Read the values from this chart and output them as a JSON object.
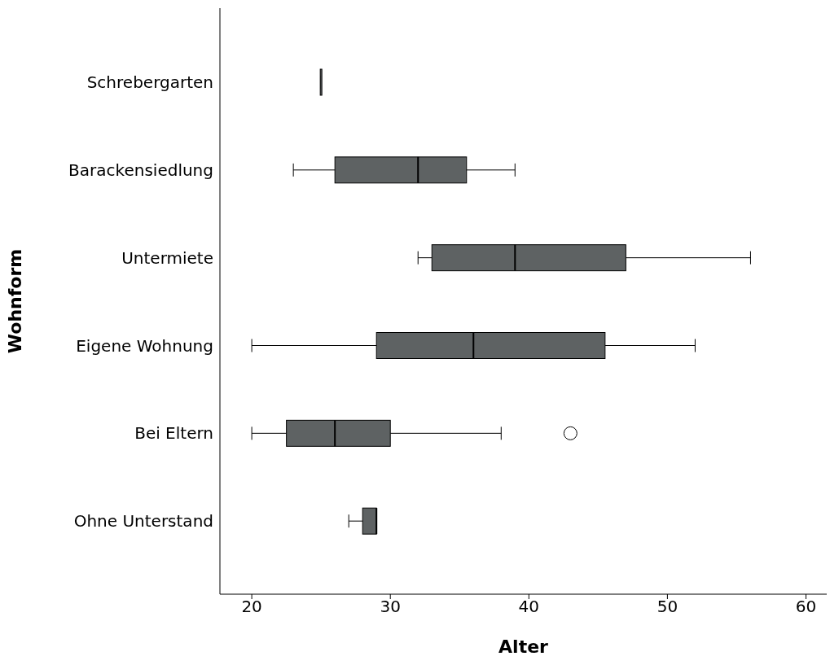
{
  "chart_data": {
    "type": "box",
    "orientation": "horizontal",
    "xlabel": "Alter",
    "ylabel": "Wohnform",
    "color": "#5e6263",
    "categories": [
      "Schrebergarten",
      "Barackensiedlung",
      "Untermiete",
      "Eigene Wohnung",
      "Bei Eltern",
      "Ohne Unterstand"
    ],
    "boxes": [
      {
        "low": 25,
        "q1": 25,
        "median": 25,
        "q3": 25,
        "high": 25
      },
      {
        "low": 23,
        "q1": 26,
        "median": 32,
        "q3": 35.5,
        "high": 39
      },
      {
        "low": 32,
        "q1": 33,
        "median": 39,
        "q3": 47,
        "high": 56
      },
      {
        "low": 20,
        "q1": 29,
        "median": 36,
        "q3": 45.5,
        "high": 52
      },
      {
        "low": 20,
        "q1": 22.5,
        "median": 26,
        "q3": 30,
        "high": 38,
        "outliers": [
          43
        ]
      },
      {
        "low": 27,
        "q1": 28,
        "median": 29,
        "q3": 29,
        "high": 29
      }
    ],
    "xlim": [
      17.7,
      61.5
    ],
    "xticks": [
      20,
      30,
      40,
      50,
      60
    ],
    "grid": false
  }
}
